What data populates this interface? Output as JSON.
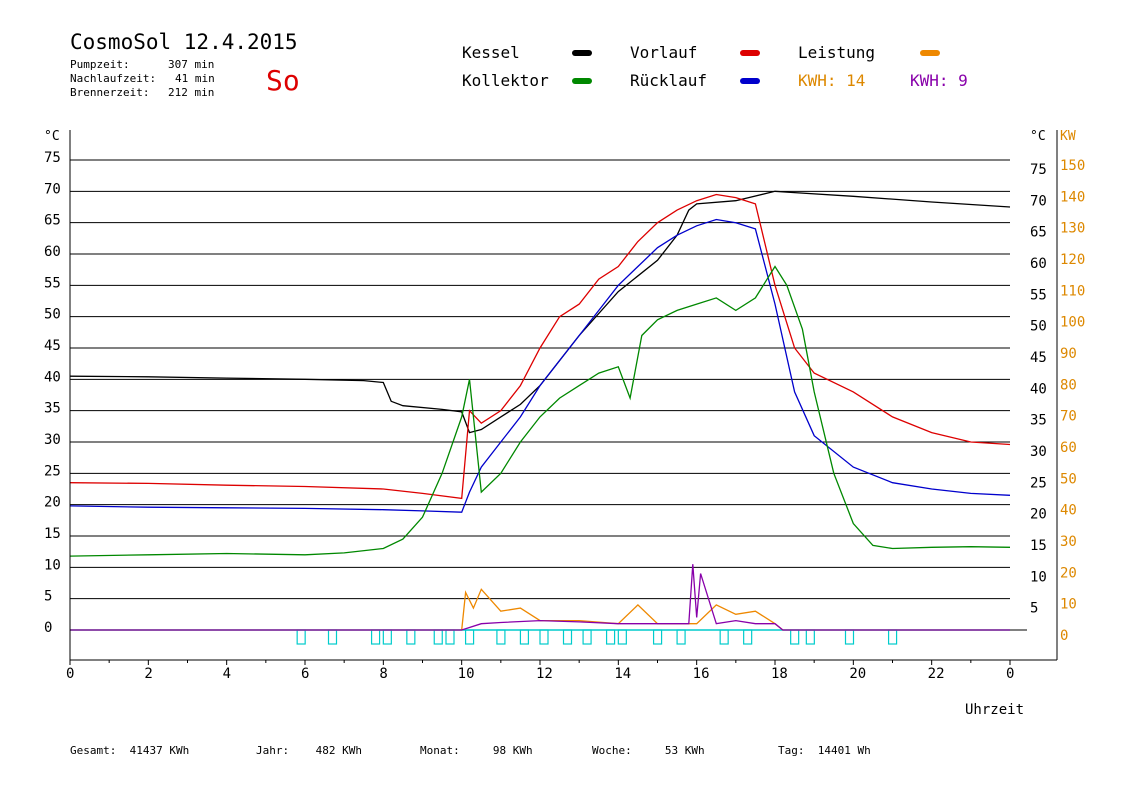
{
  "header": {
    "title": "CosmoSol 12.4.2015",
    "day": "So",
    "stats": [
      {
        "label": "Pumpzeit:",
        "value": "307 min"
      },
      {
        "label": "Nachlaufzeit:",
        "value": "41 min"
      },
      {
        "label": "Brennerzeit:",
        "value": "212 min"
      }
    ]
  },
  "legend": {
    "kessel": {
      "label": "Kessel",
      "color": "#000000"
    },
    "vorlauf": {
      "label": "Vorlauf",
      "color": "#dd0000"
    },
    "leistung": {
      "label": "Leistung",
      "color": "#ee8800"
    },
    "kollektor": {
      "label": "Kollektor",
      "color": "#008800"
    },
    "ruecklauf": {
      "label": "Rücklauf",
      "color": "#0000cc"
    },
    "kwh_orange": "KWH: 14",
    "kwh_purple": "KWH: 9",
    "kwh_orange_color": "#dd8800",
    "kwh_purple_color": "#8800aa"
  },
  "footer": {
    "gesamt": "Gesamt:  41437 KWh",
    "jahr": "Jahr:    482 KWh",
    "monat": "Monat:     98 KWh",
    "woche": "Woche:     53 KWh",
    "tag": "Tag:  14401 Wh"
  },
  "chart_data": {
    "type": "line",
    "xlabel": "Uhrzeit",
    "ylabel_left": "°C",
    "ylabel_right_temp": "°C",
    "ylabel_right_power": "KW",
    "xlim": [
      0,
      24
    ],
    "ylim": [
      0,
      75
    ],
    "ylim_power": [
      0,
      150
    ],
    "x_ticks": [
      "0",
      "2",
      "4",
      "6",
      "8",
      "10",
      "12",
      "14",
      "16",
      "18",
      "20",
      "22",
      "0"
    ],
    "y_ticks": [
      0,
      5,
      10,
      15,
      20,
      25,
      30,
      35,
      40,
      45,
      50,
      55,
      60,
      65,
      70,
      75
    ],
    "y_ticks_power_right": [
      0,
      10,
      20,
      30,
      40,
      50,
      60,
      70,
      80,
      90,
      100,
      110,
      120,
      130,
      140,
      150
    ],
    "y_ticks_temp_right": [
      5,
      10,
      15,
      20,
      25,
      30,
      35,
      40,
      45,
      50,
      55,
      60,
      65,
      70,
      75
    ],
    "grid": true,
    "series": [
      {
        "name": "Kessel",
        "color": "#000000",
        "x": [
          0,
          2,
          4,
          6,
          7.5,
          8,
          8.2,
          8.5,
          9.5,
          10.0,
          10.2,
          10.5,
          11,
          11.5,
          12,
          13,
          14,
          15,
          15.5,
          15.8,
          16.0,
          17.0,
          18.0,
          18.5,
          20,
          22,
          24
        ],
        "y": [
          40.5,
          40.4,
          40.2,
          40.0,
          39.8,
          39.5,
          36.5,
          35.8,
          35.2,
          34.8,
          31.5,
          32.0,
          34.0,
          36.0,
          39.0,
          47.0,
          54.0,
          59.0,
          63.0,
          67.0,
          68.0,
          68.5,
          70.0,
          69.8,
          69.2,
          68.3,
          67.5
        ]
      },
      {
        "name": "Vorlauf",
        "color": "#dd0000",
        "x": [
          0,
          2,
          4,
          6,
          8,
          9,
          10,
          10.2,
          10.5,
          11,
          11.5,
          12,
          12.5,
          13,
          13.5,
          14,
          14.5,
          15,
          15.5,
          16,
          16.5,
          17,
          17.5,
          18,
          18.5,
          19,
          20,
          21,
          22,
          23,
          24
        ],
        "y": [
          23.5,
          23.4,
          23.1,
          22.9,
          22.5,
          21.8,
          21.0,
          35.0,
          33.0,
          35.0,
          39.0,
          45.0,
          50.0,
          52.0,
          56.0,
          58.0,
          62.0,
          65.0,
          67.0,
          68.5,
          69.5,
          69.0,
          68.0,
          55.0,
          45.0,
          41.0,
          38.0,
          34.0,
          31.5,
          30.0,
          29.6
        ]
      },
      {
        "name": "Rücklauf",
        "color": "#0000cc",
        "x": [
          0,
          2,
          4,
          6,
          8,
          9,
          10,
          10.2,
          10.5,
          11,
          11.5,
          12,
          12.5,
          13,
          13.5,
          14,
          14.5,
          15,
          15.5,
          16,
          16.5,
          17,
          17.5,
          18,
          18.5,
          19,
          20,
          21,
          22,
          23,
          24
        ],
        "y": [
          19.8,
          19.6,
          19.5,
          19.4,
          19.2,
          19.0,
          18.8,
          22.0,
          26.0,
          30.0,
          34.0,
          39.0,
          43.0,
          47.0,
          51.0,
          55.0,
          58.0,
          61.0,
          63.0,
          64.5,
          65.5,
          65.0,
          64.0,
          52.0,
          38.0,
          31.0,
          26.0,
          23.5,
          22.5,
          21.8,
          21.5
        ]
      },
      {
        "name": "Kollektor",
        "color": "#008800",
        "x": [
          0,
          2,
          4,
          6,
          7,
          8,
          8.5,
          9,
          9.5,
          10,
          10.2,
          10.5,
          11,
          11.5,
          12,
          12.5,
          13,
          13.5,
          14,
          14.3,
          14.6,
          15,
          15.5,
          16,
          16.5,
          17,
          17.5,
          18,
          18.3,
          18.7,
          19,
          19.5,
          20,
          20.5,
          21,
          22,
          23,
          24
        ],
        "y": [
          11.8,
          12.0,
          12.2,
          12.0,
          12.3,
          13.0,
          14.5,
          18.0,
          25.0,
          34.0,
          40.0,
          22.0,
          25.0,
          30.0,
          34.0,
          37.0,
          39.0,
          41.0,
          42.0,
          37.0,
          47.0,
          49.5,
          51.0,
          52.0,
          53.0,
          51.0,
          53.0,
          58.0,
          55.0,
          48.0,
          38.0,
          25.0,
          17.0,
          13.5,
          13.0,
          13.2,
          13.3,
          13.2
        ]
      },
      {
        "name": "Leistung",
        "color": "#ee8800",
        "x": [
          0,
          10.0,
          10.1,
          10.3,
          10.5,
          11,
          11.5,
          12,
          13,
          14,
          14.5,
          15,
          16,
          16.5,
          17,
          17.5,
          18,
          18.2,
          24
        ],
        "y": [
          0,
          0,
          6.0,
          3.5,
          6.5,
          3.0,
          3.5,
          1.5,
          1.5,
          1.0,
          4.0,
          1.0,
          1.0,
          4.0,
          2.5,
          3.0,
          1.0,
          0,
          0
        ]
      },
      {
        "name": "KWH: 9",
        "color": "#8800aa",
        "x": [
          0,
          10.0,
          10.5,
          11,
          12,
          13,
          14,
          15,
          15.8,
          15.9,
          16.0,
          16.1,
          16.5,
          17,
          17.5,
          18,
          18.2,
          24
        ],
        "y": [
          0,
          0,
          1.0,
          1.2,
          1.5,
          1.3,
          1.0,
          1.0,
          1.0,
          10.5,
          2.0,
          9.0,
          1.0,
          1.5,
          1.0,
          1.0,
          0,
          0
        ]
      }
    ],
    "pump_marks_x": [
      5.8,
      6.6,
      7.7,
      8.0,
      8.6,
      9.3,
      9.6,
      10.1,
      10.9,
      11.5,
      12.0,
      12.6,
      13.1,
      13.7,
      14.0,
      14.9,
      15.5,
      16.6,
      17.2,
      18.4,
      18.8,
      19.8,
      20.9
    ],
    "pump_color": "#00cccc"
  }
}
